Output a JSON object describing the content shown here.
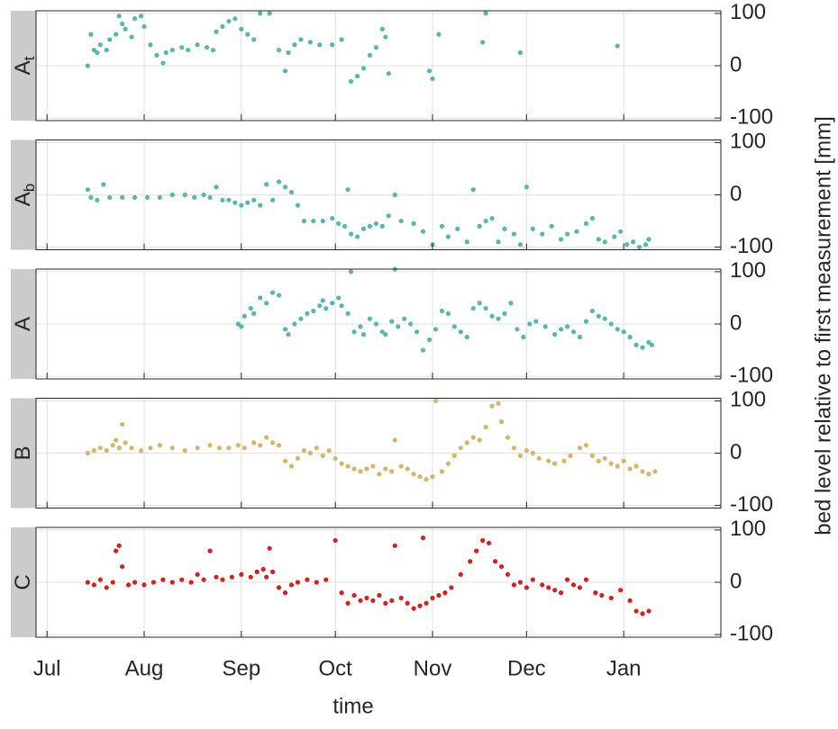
{
  "x_axis": {
    "label": "time",
    "xlim": [
      -3.5,
      215
    ],
    "xticks": [
      {
        "value": 0,
        "label": "Jul"
      },
      {
        "value": 31,
        "label": "Aug"
      },
      {
        "value": 62,
        "label": "Sep"
      },
      {
        "value": 92,
        "label": "Oct"
      },
      {
        "value": 123,
        "label": "Nov"
      },
      {
        "value": 153,
        "label": "Dec"
      },
      {
        "value": 184,
        "label": "Jan"
      }
    ]
  },
  "ylabel": "bed level relative to first measurement [mm]",
  "chart_data": [
    {
      "type": "scatter",
      "label": "A",
      "label_sub": "t",
      "color": "#56b8ac",
      "ylim": [
        -105,
        105
      ],
      "yticks": [
        -100,
        0,
        100
      ],
      "grid": true,
      "x": [
        13,
        14,
        15,
        16,
        17,
        19,
        20,
        22,
        23,
        24,
        25,
        27,
        28,
        30,
        31,
        33,
        35,
        37,
        38,
        40,
        43,
        45,
        48,
        51,
        53,
        54,
        56,
        58,
        60,
        62,
        64,
        66,
        68,
        71,
        74,
        76,
        77,
        79,
        81,
        84,
        87,
        91,
        94,
        97,
        99,
        101,
        103,
        105,
        107,
        108,
        109,
        122,
        123,
        125,
        139,
        140,
        151,
        182
      ],
      "values": [
        0,
        60,
        30,
        25,
        40,
        30,
        50,
        60,
        95,
        80,
        70,
        55,
        90,
        95,
        75,
        40,
        20,
        5,
        25,
        30,
        35,
        30,
        40,
        35,
        30,
        65,
        75,
        85,
        90,
        70,
        60,
        50,
        100,
        100,
        30,
        -10,
        25,
        40,
        50,
        45,
        40,
        40,
        50,
        -30,
        -20,
        -5,
        20,
        35,
        70,
        55,
        -15,
        -10,
        -25,
        60,
        45,
        100,
        25,
        38
      ]
    },
    {
      "type": "scatter",
      "label": "A",
      "label_sub": "b",
      "color": "#56b8ac",
      "ylim": [
        -105,
        105
      ],
      "yticks": [
        -100,
        0,
        100
      ],
      "grid": true,
      "x": [
        13,
        14,
        16,
        18,
        20,
        24,
        28,
        32,
        36,
        40,
        44,
        47,
        50,
        52,
        54,
        56,
        58,
        60,
        62,
        64,
        66,
        68,
        70,
        72,
        74,
        76,
        78,
        80,
        82,
        85,
        88,
        91,
        93,
        95,
        96,
        97,
        99,
        101,
        103,
        105,
        107,
        109,
        111,
        113,
        117,
        120,
        123,
        126,
        128,
        131,
        134,
        136,
        138,
        140,
        142,
        144,
        146,
        149,
        151,
        153,
        155,
        158,
        161,
        164,
        166,
        169,
        172,
        174,
        176,
        178,
        181,
        183,
        185,
        187,
        189,
        191,
        192
      ],
      "values": [
        10,
        -5,
        -10,
        20,
        -5,
        -5,
        -5,
        -5,
        -5,
        0,
        0,
        -5,
        0,
        -5,
        15,
        -10,
        -10,
        -15,
        -20,
        -15,
        -10,
        -20,
        20,
        -10,
        25,
        15,
        5,
        -20,
        -50,
        -50,
        -50,
        -45,
        -55,
        -60,
        10,
        -75,
        -80,
        -65,
        -60,
        -55,
        -60,
        -40,
        0,
        -50,
        -55,
        -70,
        -95,
        -60,
        -80,
        -65,
        -90,
        10,
        -60,
        -50,
        -45,
        -90,
        -65,
        -75,
        -95,
        15,
        -65,
        -75,
        -60,
        -85,
        -75,
        -70,
        -55,
        -45,
        -85,
        -90,
        -80,
        -70,
        -95,
        -90,
        -100,
        -95,
        -85
      ]
    },
    {
      "type": "scatter",
      "label": "A",
      "color": "#56b8ac",
      "ylim": [
        -105,
        105
      ],
      "yticks": [
        -100,
        0,
        100
      ],
      "grid": true,
      "x": [
        61,
        62,
        63,
        65,
        66,
        68,
        70,
        72,
        74,
        76,
        77,
        79,
        81,
        83,
        85,
        87,
        88,
        89,
        91,
        93,
        94,
        96,
        97,
        98,
        100,
        101,
        103,
        105,
        107,
        108,
        110,
        111,
        112,
        114,
        116,
        118,
        120,
        122,
        124,
        126,
        128,
        130,
        132,
        134,
        136,
        138,
        140,
        142,
        144,
        146,
        148,
        150,
        152,
        154,
        156,
        159,
        162,
        164,
        166,
        168,
        170,
        172,
        174,
        176,
        178,
        180,
        182,
        184,
        186,
        188,
        190,
        192,
        193
      ],
      "values": [
        0,
        -5,
        15,
        30,
        20,
        50,
        40,
        60,
        55,
        -10,
        -20,
        0,
        10,
        20,
        25,
        35,
        45,
        30,
        40,
        50,
        35,
        20,
        100,
        -15,
        -5,
        -20,
        10,
        0,
        -15,
        -20,
        5,
        105,
        -5,
        10,
        0,
        -15,
        -50,
        -30,
        -10,
        25,
        20,
        -5,
        -15,
        -25,
        30,
        40,
        30,
        15,
        10,
        20,
        40,
        -10,
        -25,
        0,
        5,
        -5,
        -20,
        -10,
        -5,
        -15,
        -25,
        5,
        25,
        15,
        10,
        0,
        -10,
        -15,
        -25,
        -40,
        -45,
        -35,
        -40
      ]
    },
    {
      "type": "scatter",
      "label": "B",
      "color": "#d9b466",
      "ylim": [
        -105,
        105
      ],
      "yticks": [
        -100,
        0,
        100
      ],
      "grid": true,
      "x": [
        13,
        15,
        17,
        19,
        21,
        22,
        23,
        24,
        25,
        27,
        30,
        33,
        36,
        40,
        44,
        48,
        52,
        55,
        58,
        61,
        63,
        66,
        68,
        70,
        72,
        74,
        76,
        78,
        80,
        82,
        84,
        86,
        88,
        90,
        92,
        94,
        96,
        98,
        100,
        102,
        104,
        106,
        108,
        110,
        111,
        113,
        115,
        117,
        119,
        121,
        123,
        124,
        126,
        128,
        130,
        132,
        134,
        136,
        138,
        140,
        142,
        144,
        145,
        147,
        149,
        151,
        153,
        155,
        157,
        160,
        162,
        165,
        167,
        170,
        172,
        174,
        176,
        178,
        180,
        182,
        184,
        186,
        188,
        190,
        192,
        194
      ],
      "values": [
        0,
        5,
        10,
        5,
        15,
        25,
        10,
        55,
        20,
        10,
        5,
        10,
        15,
        10,
        5,
        10,
        15,
        10,
        10,
        15,
        10,
        20,
        15,
        30,
        20,
        15,
        -15,
        -25,
        -10,
        5,
        0,
        10,
        -5,
        5,
        -10,
        -20,
        -25,
        -30,
        -35,
        -30,
        -25,
        -40,
        -30,
        -35,
        25,
        -25,
        -30,
        -40,
        -45,
        -50,
        -45,
        100,
        -35,
        -20,
        -5,
        10,
        20,
        30,
        25,
        50,
        90,
        95,
        60,
        30,
        10,
        -5,
        5,
        0,
        -10,
        -15,
        -20,
        -15,
        -5,
        10,
        15,
        -5,
        -15,
        -10,
        -20,
        -25,
        -15,
        -30,
        -25,
        -35,
        -40,
        -35
      ]
    },
    {
      "type": "scatter",
      "label": "C",
      "color": "#d7201d",
      "ylim": [
        -105,
        105
      ],
      "yticks": [
        -100,
        0,
        100
      ],
      "grid": true,
      "x": [
        13,
        15,
        17,
        19,
        21,
        22,
        23,
        24,
        26,
        28,
        31,
        34,
        37,
        40,
        43,
        46,
        48,
        50,
        52,
        54,
        56,
        59,
        62,
        65,
        67,
        69,
        70,
        71,
        72,
        74,
        76,
        78,
        80,
        83,
        86,
        89,
        92,
        94,
        96,
        98,
        100,
        102,
        104,
        106,
        108,
        110,
        111,
        113,
        115,
        117,
        119,
        120,
        121,
        123,
        125,
        127,
        129,
        132,
        135,
        137,
        139,
        141,
        143,
        145,
        147,
        149,
        151,
        153,
        155,
        158,
        160,
        162,
        164,
        166,
        168,
        170,
        172,
        175,
        177,
        180,
        183,
        186,
        188,
        190,
        192
      ],
      "values": [
        0,
        -5,
        5,
        -10,
        0,
        60,
        70,
        30,
        -5,
        0,
        -5,
        0,
        5,
        0,
        5,
        0,
        15,
        5,
        60,
        10,
        5,
        10,
        15,
        10,
        20,
        25,
        10,
        65,
        20,
        -10,
        -20,
        -5,
        0,
        5,
        0,
        5,
        80,
        -20,
        -40,
        -25,
        -35,
        -30,
        -35,
        -25,
        -40,
        -35,
        70,
        -30,
        -40,
        -50,
        -45,
        85,
        -40,
        -30,
        -25,
        -20,
        -10,
        15,
        40,
        60,
        80,
        75,
        40,
        30,
        15,
        -5,
        0,
        -10,
        5,
        -5,
        -10,
        -15,
        -20,
        5,
        -5,
        -10,
        5,
        -20,
        -25,
        -30,
        -15,
        -35,
        -55,
        -60,
        -55
      ]
    }
  ]
}
